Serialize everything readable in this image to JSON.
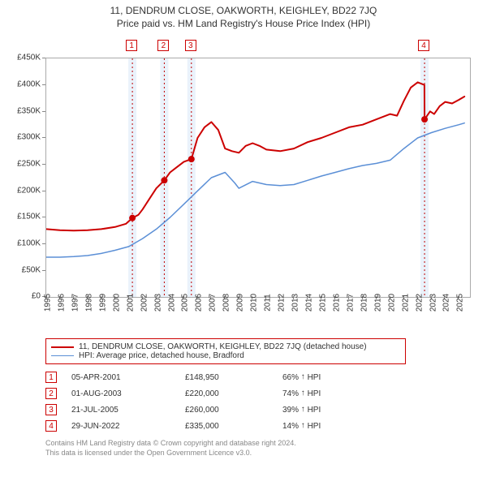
{
  "title": "11, DENDRUM CLOSE, OAKWORTH, KEIGHLEY, BD22 7JQ",
  "subtitle": "Price paid vs. HM Land Registry's House Price Index (HPI)",
  "chart": {
    "type": "line",
    "background_color": "#ffffff",
    "plot_border_color": "#aaaaaa",
    "tick_color": "#888888",
    "tick_font_size": 10,
    "x": {
      "min": 1995,
      "max": 2025.8,
      "ticks": [
        1995,
        1996,
        1997,
        1998,
        1999,
        2000,
        2001,
        2002,
        2003,
        2004,
        2005,
        2006,
        2007,
        2008,
        2009,
        2010,
        2011,
        2012,
        2013,
        2014,
        2015,
        2016,
        2017,
        2018,
        2019,
        2020,
        2021,
        2022,
        2023,
        2024,
        2025
      ]
    },
    "y": {
      "min": 0,
      "max": 450000,
      "tick_step": 50000,
      "tick_labels": [
        "£0",
        "£50K",
        "£100K",
        "£150K",
        "£200K",
        "£250K",
        "£300K",
        "£350K",
        "£400K",
        "£450K"
      ]
    },
    "event_band_color": "#eaf2fb",
    "event_dash_color": "#c00000",
    "series": [
      {
        "id": "subject",
        "label": "11, DENDRUM CLOSE, OAKWORTH, KEIGHLEY, BD22 7JQ (detached house)",
        "color": "#cc0000",
        "width": 2,
        "points": [
          [
            1995.0,
            128000
          ],
          [
            1996.0,
            126000
          ],
          [
            1997.0,
            125000
          ],
          [
            1998.0,
            126000
          ],
          [
            1999.0,
            128000
          ],
          [
            2000.0,
            132000
          ],
          [
            2000.8,
            138000
          ],
          [
            2001.26,
            148950
          ],
          [
            2001.7,
            155000
          ],
          [
            2002.0,
            165000
          ],
          [
            2002.5,
            185000
          ],
          [
            2003.0,
            205000
          ],
          [
            2003.58,
            220000
          ],
          [
            2004.0,
            235000
          ],
          [
            2004.5,
            245000
          ],
          [
            2005.0,
            255000
          ],
          [
            2005.55,
            260000
          ],
          [
            2006.0,
            300000
          ],
          [
            2006.5,
            320000
          ],
          [
            2007.0,
            330000
          ],
          [
            2007.5,
            315000
          ],
          [
            2008.0,
            280000
          ],
          [
            2008.5,
            275000
          ],
          [
            2009.0,
            272000
          ],
          [
            2009.5,
            285000
          ],
          [
            2010.0,
            290000
          ],
          [
            2010.5,
            285000
          ],
          [
            2011.0,
            278000
          ],
          [
            2012.0,
            275000
          ],
          [
            2013.0,
            280000
          ],
          [
            2014.0,
            292000
          ],
          [
            2015.0,
            300000
          ],
          [
            2016.0,
            310000
          ],
          [
            2017.0,
            320000
          ],
          [
            2018.0,
            325000
          ],
          [
            2019.0,
            335000
          ],
          [
            2020.0,
            345000
          ],
          [
            2020.5,
            342000
          ],
          [
            2021.0,
            370000
          ],
          [
            2021.5,
            395000
          ],
          [
            2022.0,
            405000
          ],
          [
            2022.49,
            400000
          ],
          [
            2022.5,
            335000
          ],
          [
            2022.9,
            350000
          ],
          [
            2023.2,
            345000
          ],
          [
            2023.6,
            360000
          ],
          [
            2024.0,
            368000
          ],
          [
            2024.5,
            365000
          ],
          [
            2025.0,
            372000
          ],
          [
            2025.4,
            378000
          ]
        ],
        "sale_markers": [
          {
            "n": 1,
            "year": 2001.26,
            "price": 148950
          },
          {
            "n": 2,
            "year": 2003.58,
            "price": 220000
          },
          {
            "n": 3,
            "year": 2005.55,
            "price": 260000
          },
          {
            "n": 4,
            "year": 2022.5,
            "price": 335000
          }
        ]
      },
      {
        "id": "hpi",
        "label": "HPI: Average price, detached house, Bradford",
        "color": "#5b8fd6",
        "width": 1.5,
        "points": [
          [
            1995.0,
            75000
          ],
          [
            1996.0,
            75000
          ],
          [
            1997.0,
            76000
          ],
          [
            1998.0,
            78000
          ],
          [
            1999.0,
            82000
          ],
          [
            2000.0,
            88000
          ],
          [
            2001.0,
            95000
          ],
          [
            2002.0,
            110000
          ],
          [
            2003.0,
            128000
          ],
          [
            2004.0,
            150000
          ],
          [
            2005.0,
            175000
          ],
          [
            2006.0,
            200000
          ],
          [
            2007.0,
            225000
          ],
          [
            2008.0,
            235000
          ],
          [
            2008.7,
            215000
          ],
          [
            2009.0,
            205000
          ],
          [
            2010.0,
            218000
          ],
          [
            2011.0,
            212000
          ],
          [
            2012.0,
            210000
          ],
          [
            2013.0,
            212000
          ],
          [
            2014.0,
            220000
          ],
          [
            2015.0,
            228000
          ],
          [
            2016.0,
            235000
          ],
          [
            2017.0,
            242000
          ],
          [
            2018.0,
            248000
          ],
          [
            2019.0,
            252000
          ],
          [
            2020.0,
            258000
          ],
          [
            2021.0,
            280000
          ],
          [
            2022.0,
            300000
          ],
          [
            2023.0,
            310000
          ],
          [
            2024.0,
            318000
          ],
          [
            2025.0,
            325000
          ],
          [
            2025.4,
            328000
          ]
        ]
      }
    ],
    "events": [
      {
        "n": 1,
        "year": 2001.26
      },
      {
        "n": 2,
        "year": 2003.58
      },
      {
        "n": 3,
        "year": 2005.55
      },
      {
        "n": 4,
        "year": 2022.5
      }
    ],
    "marker_dot_color": "#cc0000",
    "marker_box_border": "#cc0000"
  },
  "legend": {
    "rows": [
      {
        "color": "#cc0000",
        "width": 2,
        "label": "11, DENDRUM CLOSE, OAKWORTH, KEIGHLEY, BD22 7JQ (detached house)"
      },
      {
        "color": "#5b8fd6",
        "width": 1.5,
        "label": "HPI: Average price, detached house, Bradford"
      }
    ]
  },
  "sales": [
    {
      "n": "1",
      "date": "05-APR-2001",
      "price": "£148,950",
      "pct": "66%",
      "arrow": "↑",
      "suffix": "HPI"
    },
    {
      "n": "2",
      "date": "01-AUG-2003",
      "price": "£220,000",
      "pct": "74%",
      "arrow": "↑",
      "suffix": "HPI"
    },
    {
      "n": "3",
      "date": "21-JUL-2005",
      "price": "£260,000",
      "pct": "39%",
      "arrow": "↑",
      "suffix": "HPI"
    },
    {
      "n": "4",
      "date": "29-JUN-2022",
      "price": "£335,000",
      "pct": "14%",
      "arrow": "↑",
      "suffix": "HPI"
    }
  ],
  "footer": {
    "line1": "Contains HM Land Registry data © Crown copyright and database right 2024.",
    "line2": "This data is licensed under the Open Government Licence v3.0."
  }
}
